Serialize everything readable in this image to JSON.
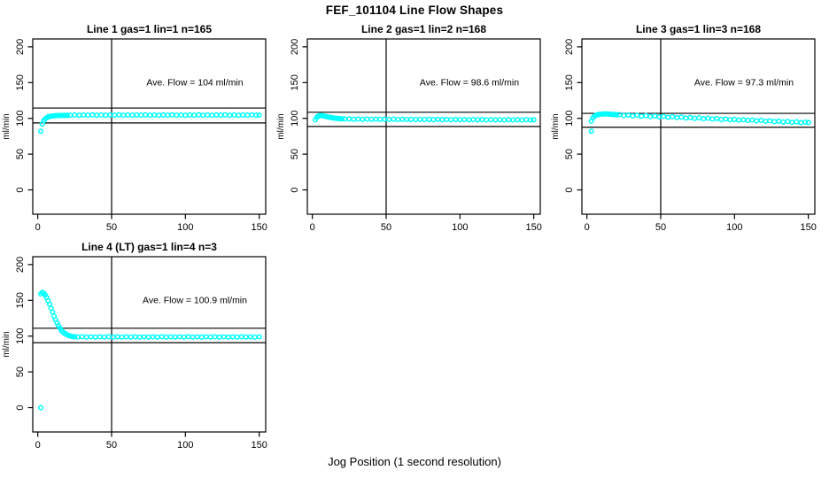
{
  "title": "FEF_101104  Line Flow Shapes",
  "xaxis_label": "Jog Position (1 second resolution)",
  "colors": {
    "marker": "#00FFFF",
    "axis": "#000000",
    "background": "#FFFFFF"
  },
  "chart_data": [
    {
      "type": "scatter",
      "title": "Line 1 gas=1 lin=1 n=165",
      "annotation": "Ave. Flow =  104  ml/min",
      "ave_flow": 104,
      "ylabel": "ml/min",
      "x_ticks": [
        0,
        50,
        100,
        150
      ],
      "y_ticks": [
        0,
        50,
        100,
        150,
        200
      ],
      "xlim": [
        -3.4,
        154.4
      ],
      "ylim": [
        -34,
        211
      ],
      "ref_vline_x": 50,
      "ref_hlines": [
        114.4,
        93.6
      ],
      "points": [
        [
          2,
          82
        ],
        [
          3,
          92
        ],
        [
          4,
          96.5
        ],
        [
          5,
          99.2
        ],
        [
          6,
          100.9
        ],
        [
          7,
          101.9
        ],
        [
          8,
          102.6
        ],
        [
          9,
          103
        ],
        [
          10,
          103.3
        ],
        [
          11,
          103.5
        ],
        [
          12,
          103.7
        ],
        [
          13,
          103.8
        ],
        [
          14,
          103.9
        ],
        [
          15,
          104
        ],
        [
          16,
          104
        ],
        [
          17,
          104.1
        ],
        [
          18,
          104.1
        ],
        [
          19,
          104.2
        ],
        [
          20,
          104.2
        ],
        [
          22,
          104.4
        ],
        [
          25,
          104.7
        ],
        [
          28,
          104.3
        ],
        [
          31,
          104.8
        ],
        [
          34,
          104.5
        ],
        [
          37,
          104.9
        ],
        [
          40,
          104.4
        ],
        [
          43,
          104.7
        ],
        [
          46,
          104.3
        ],
        [
          49,
          104.8
        ],
        [
          52,
          104.5
        ],
        [
          55,
          104.9
        ],
        [
          58,
          104.4
        ],
        [
          61,
          104.7
        ],
        [
          64,
          104.3
        ],
        [
          67,
          104.8
        ],
        [
          70,
          104.5
        ],
        [
          73,
          104.9
        ],
        [
          76,
          104.4
        ],
        [
          79,
          104.7
        ],
        [
          82,
          104.3
        ],
        [
          85,
          104.8
        ],
        [
          88,
          104.5
        ],
        [
          91,
          104.9
        ],
        [
          94,
          104.4
        ],
        [
          97,
          104.7
        ],
        [
          100,
          104.3
        ],
        [
          103,
          104.8
        ],
        [
          106,
          104.5
        ],
        [
          109,
          104.9
        ],
        [
          112,
          104.4
        ],
        [
          115,
          104.7
        ],
        [
          118,
          104.3
        ],
        [
          121,
          104.8
        ],
        [
          124,
          104.5
        ],
        [
          127,
          104.9
        ],
        [
          130,
          104.4
        ],
        [
          133,
          104.7
        ],
        [
          136,
          104.3
        ],
        [
          139,
          104.8
        ],
        [
          142,
          104.5
        ],
        [
          145,
          104.9
        ],
        [
          148,
          104.4
        ],
        [
          150,
          104.6
        ]
      ]
    },
    {
      "type": "scatter",
      "title": "Line 2 gas=1 lin=2 n=168",
      "annotation": "Ave. Flow =  98.6  ml/min",
      "ave_flow": 98.6,
      "ylabel": "ml/min",
      "x_ticks": [
        0,
        50,
        100,
        150
      ],
      "y_ticks": [
        0,
        50,
        100,
        150,
        200
      ],
      "xlim": [
        -3.4,
        154.4
      ],
      "ylim": [
        -34,
        211
      ],
      "ref_vline_x": 50,
      "ref_hlines": [
        108.5,
        88.7
      ],
      "points": [
        [
          2,
          98
        ],
        [
          3,
          101.5
        ],
        [
          4,
          103
        ],
        [
          5,
          103.8
        ],
        [
          6,
          103.9
        ],
        [
          7,
          103.6
        ],
        [
          8,
          103.2
        ],
        [
          9,
          102.7
        ],
        [
          10,
          102.2
        ],
        [
          11,
          101.8
        ],
        [
          12,
          101.4
        ],
        [
          13,
          101
        ],
        [
          14,
          100.7
        ],
        [
          15,
          100.4
        ],
        [
          16,
          100.1
        ],
        [
          17,
          99.9
        ],
        [
          18,
          99.7
        ],
        [
          19,
          99.5
        ],
        [
          20,
          99.3
        ],
        [
          22,
          99.1
        ],
        [
          25,
          99.3
        ],
        [
          28,
          98.8
        ],
        [
          31,
          99.2
        ],
        [
          34,
          98.7
        ],
        [
          37,
          99.1
        ],
        [
          40,
          98.6
        ],
        [
          43,
          99
        ],
        [
          46,
          98.6
        ],
        [
          49,
          98.9
        ],
        [
          52,
          98.5
        ],
        [
          55,
          98.9
        ],
        [
          58,
          98.4
        ],
        [
          61,
          98.8
        ],
        [
          64,
          98.4
        ],
        [
          67,
          98.7
        ],
        [
          70,
          98.3
        ],
        [
          73,
          98.7
        ],
        [
          76,
          98.3
        ],
        [
          79,
          98.6
        ],
        [
          82,
          98.2
        ],
        [
          85,
          98.6
        ],
        [
          88,
          98.2
        ],
        [
          91,
          98.5
        ],
        [
          94,
          98.1
        ],
        [
          97,
          98.5
        ],
        [
          100,
          98.1
        ],
        [
          103,
          98.4
        ],
        [
          106,
          98
        ],
        [
          109,
          98.4
        ],
        [
          112,
          98
        ],
        [
          115,
          98.3
        ],
        [
          118,
          97.9
        ],
        [
          121,
          98.3
        ],
        [
          124,
          97.9
        ],
        [
          127,
          98.2
        ],
        [
          130,
          97.8
        ],
        [
          133,
          98.2
        ],
        [
          136,
          97.8
        ],
        [
          139,
          98.1
        ],
        [
          142,
          97.7
        ],
        [
          145,
          98.1
        ],
        [
          148,
          97.7
        ],
        [
          150,
          98
        ]
      ]
    },
    {
      "type": "scatter",
      "title": "Line 3 gas=1 lin=3 n=168",
      "annotation": "Ave. Flow =  97.3  ml/min",
      "ave_flow": 97.3,
      "ylabel": "ml/min",
      "x_ticks": [
        0,
        50,
        100,
        150
      ],
      "y_ticks": [
        0,
        50,
        100,
        150,
        200
      ],
      "xlim": [
        -3.4,
        154.4
      ],
      "ylim": [
        -34,
        211
      ],
      "ref_vline_x": 50,
      "ref_hlines": [
        107.0,
        87.6
      ],
      "points": [
        [
          3,
          82
        ],
        [
          3,
          96
        ],
        [
          4,
          100.5
        ],
        [
          5,
          102.8
        ],
        [
          6,
          104.2
        ],
        [
          7,
          105
        ],
        [
          8,
          105.5
        ],
        [
          9,
          105.8
        ],
        [
          10,
          106
        ],
        [
          11,
          106.1
        ],
        [
          12,
          106.2
        ],
        [
          13,
          106.2
        ],
        [
          14,
          106.1
        ],
        [
          15,
          106
        ],
        [
          16,
          105.8
        ],
        [
          17,
          105.6
        ],
        [
          18,
          105.4
        ],
        [
          19,
          105.2
        ],
        [
          20,
          105
        ],
        [
          22,
          105.3
        ],
        [
          25,
          104
        ],
        [
          28,
          104.8
        ],
        [
          31,
          103.5
        ],
        [
          34,
          104.3
        ],
        [
          37,
          103
        ],
        [
          40,
          103.8
        ],
        [
          43,
          102.5
        ],
        [
          46,
          103.3
        ],
        [
          49,
          102
        ],
        [
          52,
          102.8
        ],
        [
          55,
          101.5
        ],
        [
          58,
          102.3
        ],
        [
          61,
          101
        ],
        [
          64,
          101.8
        ],
        [
          67,
          100.5
        ],
        [
          70,
          101.3
        ],
        [
          73,
          100
        ],
        [
          76,
          100.7
        ],
        [
          79,
          99.5
        ],
        [
          82,
          100.2
        ],
        [
          85,
          99
        ],
        [
          88,
          99.7
        ],
        [
          91,
          98.5
        ],
        [
          94,
          99.2
        ],
        [
          97,
          98
        ],
        [
          100,
          98.7
        ],
        [
          103,
          97.5
        ],
        [
          106,
          98.2
        ],
        [
          109,
          97
        ],
        [
          112,
          97.7
        ],
        [
          115,
          96.5
        ],
        [
          118,
          97.2
        ],
        [
          121,
          95.9
        ],
        [
          124,
          96.7
        ],
        [
          127,
          95.4
        ],
        [
          130,
          96.2
        ],
        [
          133,
          94.9
        ],
        [
          136,
          95.7
        ],
        [
          139,
          94.4
        ],
        [
          142,
          95.2
        ],
        [
          145,
          93.9
        ],
        [
          148,
          94.7
        ],
        [
          150,
          94.2
        ]
      ]
    },
    {
      "type": "scatter",
      "title": "Line 4 (LT) gas=1 lin=4 n=3",
      "annotation": "Ave. Flow =  100.9  ml/min",
      "ave_flow": 100.9,
      "ylabel": "ml/min",
      "x_ticks": [
        0,
        50,
        100,
        150
      ],
      "y_ticks": [
        0,
        50,
        100,
        150,
        200
      ],
      "xlim": [
        -3.4,
        154.4
      ],
      "ylim": [
        -34,
        211
      ],
      "ref_vline_x": 50,
      "ref_hlines": [
        111.0,
        90.8
      ],
      "points": [
        [
          2,
          0
        ],
        [
          2,
          159
        ],
        [
          3,
          161
        ],
        [
          4,
          160
        ],
        [
          5,
          157.5
        ],
        [
          6,
          154
        ],
        [
          7,
          149.5
        ],
        [
          8,
          144.5
        ],
        [
          9,
          139
        ],
        [
          10,
          133.5
        ],
        [
          11,
          128
        ],
        [
          12,
          123
        ],
        [
          13,
          118.5
        ],
        [
          14,
          114.5
        ],
        [
          15,
          111
        ],
        [
          16,
          108.2
        ],
        [
          17,
          106
        ],
        [
          18,
          104.2
        ],
        [
          19,
          102.8
        ],
        [
          20,
          101.6
        ],
        [
          21,
          100.7
        ],
        [
          22,
          100.1
        ],
        [
          23,
          99.6
        ],
        [
          24,
          99.3
        ],
        [
          25,
          99
        ],
        [
          27,
          98.8
        ],
        [
          30,
          99.1
        ],
        [
          33,
          98.7
        ],
        [
          36,
          99
        ],
        [
          39,
          98.6
        ],
        [
          42,
          99
        ],
        [
          45,
          98.7
        ],
        [
          48,
          99.1
        ],
        [
          51,
          98.7
        ],
        [
          54,
          99
        ],
        [
          57,
          98.6
        ],
        [
          60,
          99
        ],
        [
          63,
          98.7
        ],
        [
          66,
          99.1
        ],
        [
          69,
          98.7
        ],
        [
          72,
          99
        ],
        [
          75,
          98.6
        ],
        [
          78,
          99
        ],
        [
          81,
          98.7
        ],
        [
          84,
          99.1
        ],
        [
          87,
          98.7
        ],
        [
          90,
          99
        ],
        [
          93,
          98.6
        ],
        [
          96,
          99
        ],
        [
          99,
          98.7
        ],
        [
          102,
          99.1
        ],
        [
          105,
          98.7
        ],
        [
          108,
          99
        ],
        [
          111,
          98.6
        ],
        [
          114,
          99
        ],
        [
          117,
          98.7
        ],
        [
          120,
          99.1
        ],
        [
          123,
          98.7
        ],
        [
          126,
          99
        ],
        [
          129,
          98.6
        ],
        [
          132,
          99
        ],
        [
          135,
          98.7
        ],
        [
          138,
          99.1
        ],
        [
          141,
          98.7
        ],
        [
          144,
          99
        ],
        [
          147,
          98.6
        ],
        [
          150,
          99
        ]
      ]
    }
  ]
}
